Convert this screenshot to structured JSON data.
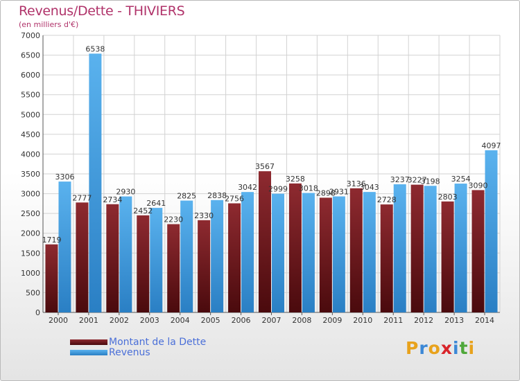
{
  "title": "Revenus/Dette - THIVIERS",
  "subtitle": "(en milliers d'€)",
  "colors": {
    "dette": "#7a1e22",
    "revenus": "#3d9de0",
    "title": "#b0336a",
    "legend_text": "#4a6fd8"
  },
  "chart_data": {
    "type": "bar",
    "categories": [
      "2000",
      "2001",
      "2002",
      "2003",
      "2004",
      "2005",
      "2006",
      "2007",
      "2008",
      "2009",
      "2010",
      "2011",
      "2012",
      "2013",
      "2014"
    ],
    "series": [
      {
        "name": "Montant de la Dette",
        "values": [
          1719,
          2777,
          2734,
          2452,
          2230,
          2330,
          2756,
          3567,
          3258,
          2898,
          3136,
          2728,
          3227,
          2803,
          3090
        ]
      },
      {
        "name": "Revenus",
        "values": [
          3306,
          6538,
          2930,
          2641,
          2825,
          2838,
          3042,
          2999,
          3018,
          2931,
          3043,
          3237,
          3198,
          3254,
          4097
        ]
      }
    ],
    "ylim": [
      0,
      7000
    ],
    "yticks": [
      0,
      500,
      1000,
      1500,
      2000,
      2500,
      3000,
      3500,
      4000,
      4500,
      5000,
      5500,
      6000,
      6500,
      7000
    ],
    "value_labels": {
      "dette": [
        "1719",
        "2777",
        "2734",
        "2452",
        "2230",
        "2330",
        "2756",
        "3567",
        "3258",
        "2898",
        "3136",
        "2728",
        "3227",
        "2803",
        "3090"
      ],
      "revenus": [
        "3306",
        "6538",
        "2930",
        "2641",
        "2825",
        "2838",
        "3042",
        "2999",
        "3018",
        "2931",
        "3043",
        "3237",
        "3198",
        "3254",
        "4097"
      ]
    },
    "grid": true,
    "legend": "bottom-left"
  },
  "legend": {
    "dette_label": "Montant de la Dette",
    "revenus_label": "Revenus"
  },
  "logo": {
    "letters": [
      "P",
      "r",
      "o",
      "x",
      "i",
      "t",
      "i"
    ],
    "colors": [
      "#e8a21c",
      "#3c88d6",
      "#e8a21c",
      "#d8242a",
      "#3c88d6",
      "#4fa83a",
      "#e8a21c"
    ]
  }
}
